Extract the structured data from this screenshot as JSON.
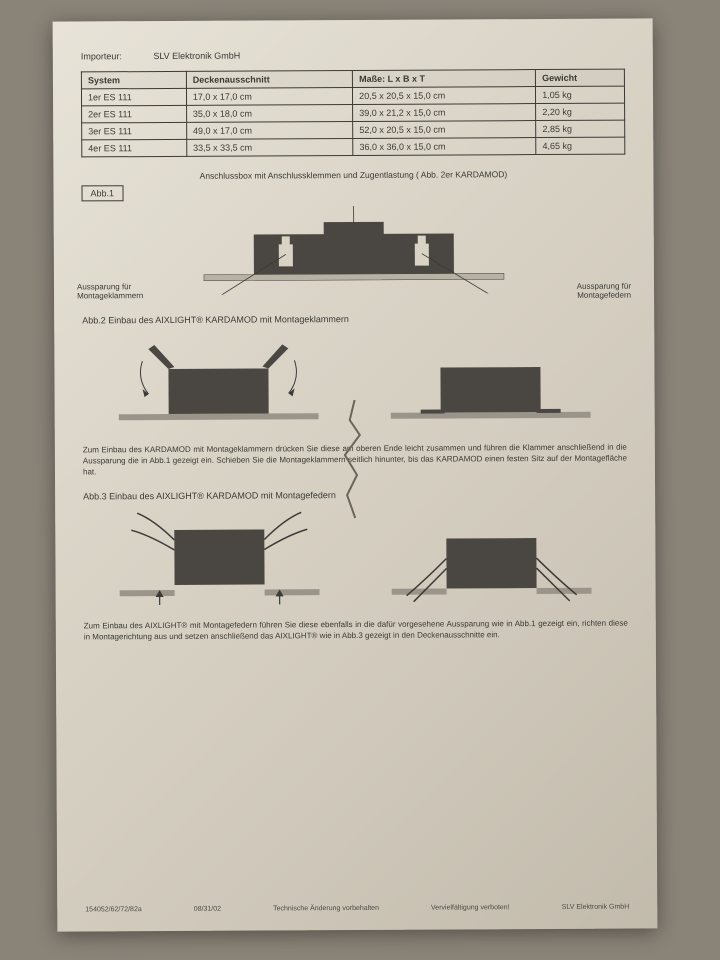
{
  "importer_label": "Importeur:",
  "importer_name": "SLV Elektronik GmbH",
  "table": {
    "headers": [
      "System",
      "Deckenausschnitt",
      "Maße: L x B x T",
      "Gewicht"
    ],
    "rows": [
      [
        "1er ES 111",
        "17,0 x 17,0 cm",
        "20,5 x 20,5 x 15,0 cm",
        "1,05 kg"
      ],
      [
        "2er ES 111",
        "35,0 x 18,0 cm",
        "39,0 x 21,2 x 15,0 cm",
        "2,20 kg"
      ],
      [
        "3er ES 111",
        "49,0 x 17,0 cm",
        "52,0 x 20,5 x 15,0 cm",
        "2,85 kg"
      ],
      [
        "4er ES 111",
        "33,5 x 33,5 cm",
        "36,0 x 36,0 x 15,0 cm",
        "4,65 kg"
      ]
    ]
  },
  "topnote": "Anschlussbox mit Anschlussklemmen und Zugentlastung ( Abb. 2er KARDAMOD)",
  "abb1_label": "Abb.1",
  "callout_left": "Aussparung für Montageklammern",
  "callout_right": "Aussparung für Montagefedern",
  "abb2_title": "Abb.2  Einbau des AIXLIGHT® KARDAMOD mit Montageklammern",
  "abb2_text": "Zum Einbau des KARDAMOD mit Montageklammern drücken Sie diese am oberen Ende leicht zusammen und führen die Klammer anschließend in die Aussparung die in Abb.1 gezeigt ein. Schieben Sie die Montageklammern seitlich hinunter, bis das KARDAMOD einen festen Sitz auf der Montagefläche hat.",
  "abb3_title": "Abb.3 Einbau des AIXLIGHT® KARDAMOD mit Montagefedern",
  "abb3_text": "Zum Einbau des AIXLIGHT® mit Montagefedern führen Sie diese ebenfalls in die dafür vorgesehene Aussparung wie in Abb.1 gezeigt ein, richten diese in Montagerichtung aus und setzen anschließend das AIXLIGHT® wie in Abb.3 gezeigt in den Deckenausschnitte ein.",
  "footer": {
    "left": "154052/62/72/82a",
    "date": "08/31/02",
    "mid": "Technische Änderung vorbehalten",
    "mid2": "Vervielfältigung verboten!",
    "right": "SLV Elektronik GmbH"
  },
  "colors": {
    "fixture_fill": "#4a4742",
    "line": "#3a3a36",
    "ceiling": "#9a948a"
  }
}
